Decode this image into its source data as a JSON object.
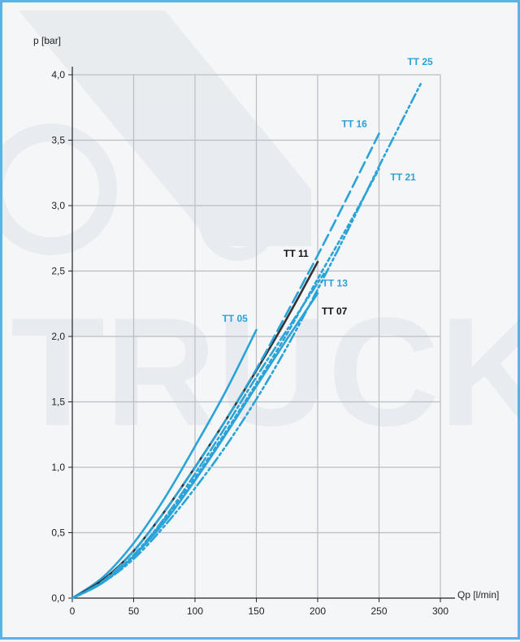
{
  "chart_data": {
    "type": "line",
    "title": "",
    "xlabel": "Qp [l/min]",
    "ylabel": "p [bar]",
    "xlim": [
      0,
      300
    ],
    "ylim": [
      0,
      4.0
    ],
    "xticks": [
      0,
      50,
      100,
      150,
      200,
      250,
      300
    ],
    "yticks": [
      0,
      0.5,
      1.0,
      1.5,
      2.0,
      2.5,
      3.0,
      3.5,
      4.0
    ],
    "xtick_labels": [
      "0",
      "50",
      "100",
      "150",
      "200",
      "250",
      "300"
    ],
    "ytick_labels": [
      "0,0",
      "0,5",
      "1,0",
      "1,5",
      "2,0",
      "2,5",
      "3,0",
      "3,5",
      "4,0"
    ],
    "grid": true,
    "series": [
      {
        "name": "TT 05",
        "color": "#2aa3d8",
        "style": "solid",
        "x": [
          0,
          25,
          50,
          75,
          100,
          125,
          150
        ],
        "y": [
          0,
          0.16,
          0.42,
          0.76,
          1.16,
          1.58,
          2.05
        ]
      },
      {
        "name": "TT 07",
        "color": "#2aa3d8",
        "style": "solid",
        "x": [
          0,
          25,
          50,
          75,
          100,
          125,
          150,
          175,
          200
        ],
        "y": [
          0,
          0.12,
          0.32,
          0.58,
          0.9,
          1.25,
          1.62,
          1.98,
          2.33
        ]
      },
      {
        "name": "TT 11",
        "color": "#333333",
        "style": "solid",
        "x": [
          0,
          25,
          50,
          75,
          100,
          125,
          150,
          175,
          200
        ],
        "y": [
          0,
          0.14,
          0.36,
          0.66,
          1.0,
          1.36,
          1.74,
          2.14,
          2.57
        ]
      },
      {
        "name": "TT 13",
        "color": "#2aa3d8",
        "style": "dashdot",
        "x": [
          0,
          25,
          50,
          75,
          100,
          125,
          150,
          175,
          205
        ],
        "y": [
          0,
          0.12,
          0.33,
          0.61,
          0.95,
          1.31,
          1.69,
          2.05,
          2.48
        ]
      },
      {
        "name": "TT 16",
        "color": "#2aa3d8",
        "style": "dash",
        "x": [
          0,
          25,
          50,
          75,
          100,
          125,
          150,
          175,
          200,
          225,
          250
        ],
        "y": [
          0,
          0.13,
          0.36,
          0.66,
          1.0,
          1.36,
          1.75,
          2.18,
          2.62,
          3.08,
          3.55
        ]
      },
      {
        "name": "TT 21",
        "color": "#2aa3d8",
        "style": "dot",
        "x": [
          0,
          25,
          50,
          75,
          100,
          125,
          150,
          175,
          200,
          225,
          250
        ],
        "y": [
          0,
          0.12,
          0.32,
          0.6,
          0.92,
          1.27,
          1.64,
          2.02,
          2.44,
          2.85,
          3.28
        ]
      },
      {
        "name": "TT 25",
        "color": "#2aa3d8",
        "style": "dashdotdot",
        "x": [
          0,
          25,
          50,
          75,
          100,
          125,
          150,
          175,
          200,
          225,
          250,
          285
        ],
        "y": [
          0,
          0.12,
          0.3,
          0.55,
          0.84,
          1.16,
          1.52,
          1.92,
          2.36,
          2.82,
          3.3,
          3.95
        ]
      }
    ],
    "series_label_colors": {
      "TT 05": "#2aa3d8",
      "TT 07": "#111111",
      "TT 11": "#111111",
      "TT 13": "#2aa3d8",
      "TT 16": "#2aa3d8",
      "TT 21": "#2aa3d8",
      "TT 25": "#2aa3d8"
    }
  }
}
